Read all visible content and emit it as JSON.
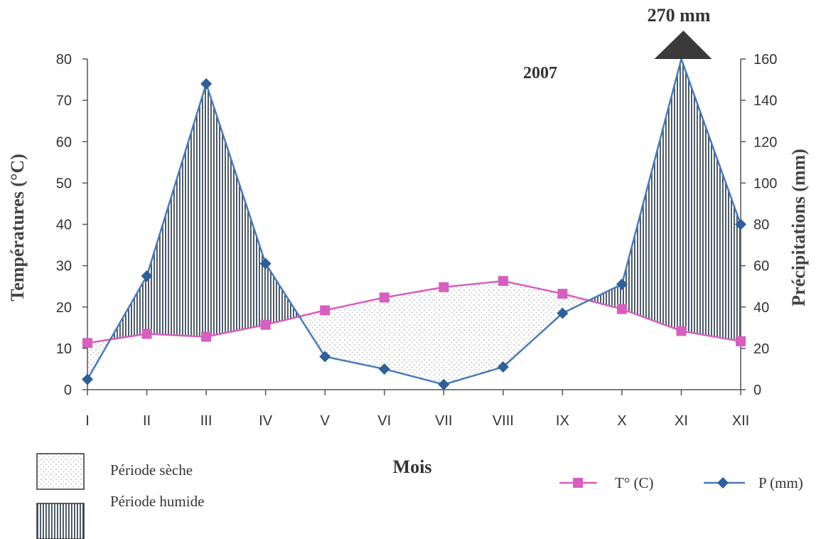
{
  "chart_data": {
    "type": "line",
    "title": "2007",
    "annotation": "270 mm",
    "xlabel": "Mois",
    "ylabel_left": "Températures (°C)",
    "ylabel_right": "Précipitations (mm)",
    "categories": [
      "I",
      "II",
      "III",
      "IV",
      "V",
      "VI",
      "VII",
      "VIII",
      "IX",
      "X",
      "XI",
      "XII"
    ],
    "y_left": {
      "min": 0,
      "max": 80,
      "ticks": [
        0,
        10,
        20,
        30,
        40,
        50,
        60,
        70,
        80
      ]
    },
    "y_right": {
      "min": 0,
      "max": 160,
      "ticks": [
        0,
        20,
        40,
        60,
        80,
        100,
        120,
        140,
        160
      ]
    },
    "series": [
      {
        "name": "T° (C)",
        "axis": "left",
        "color": "#d65fbf",
        "marker": "square",
        "values": [
          11.3,
          13.5,
          12.8,
          15.7,
          19.2,
          22.3,
          24.8,
          26.3,
          23.2,
          19.5,
          14.2,
          11.7
        ]
      },
      {
        "name": "P (mm)",
        "axis": "right",
        "color": "#4a7ab5",
        "marker": "diamond",
        "values": [
          5,
          55,
          148,
          61,
          16,
          10,
          2.5,
          11,
          37,
          51,
          270,
          80
        ]
      }
    ],
    "legend": {
      "dry_label": "Période sèche",
      "wet_label": "Période humide"
    },
    "grid": false,
    "legend_placement": "bottom"
  }
}
